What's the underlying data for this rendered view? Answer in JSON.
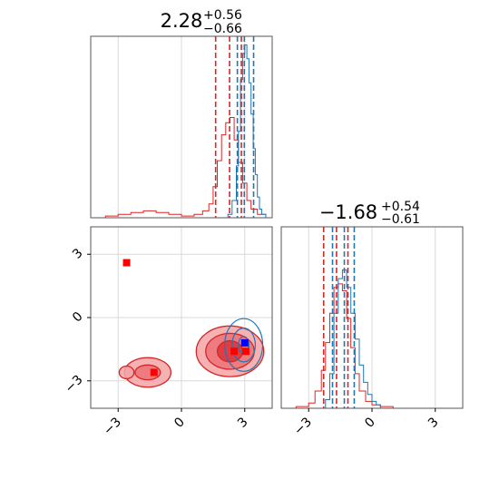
{
  "colors": {
    "red": "#d62728",
    "blue": "#1f77b4",
    "grid": "#d9d9d9",
    "axis": "#555555",
    "marker_red": "#ff0000",
    "marker_blue": "#0000ff"
  },
  "chart_data": {
    "type": "corner",
    "parameter_1": {
      "title_value": "2.28",
      "title_upper": "+0.56",
      "title_lower": "−0.66",
      "xlim": [
        -4.3,
        4.3
      ],
      "red_quantiles": [
        1.62,
        2.28,
        2.84
      ],
      "blue_quantiles": [
        2.65,
        2.98,
        3.42
      ],
      "hist_red": {
        "x": [
          -4.2,
          -3.6,
          -3.0,
          -2.4,
          -1.8,
          -1.2,
          -0.6,
          0.0,
          0.6,
          1.0,
          1.3,
          1.5,
          1.7,
          1.9,
          2.1,
          2.3,
          2.5,
          2.7,
          2.9,
          3.1,
          3.3,
          3.6,
          4.0
        ],
        "y": [
          0.0,
          0.01,
          0.02,
          0.03,
          0.04,
          0.03,
          0.02,
          0.01,
          0.02,
          0.04,
          0.08,
          0.18,
          0.33,
          0.48,
          0.55,
          0.58,
          0.45,
          0.32,
          0.2,
          0.1,
          0.05,
          0.02,
          0.0
        ]
      },
      "hist_blue": {
        "x": [
          2.0,
          2.2,
          2.4,
          2.6,
          2.7,
          2.8,
          2.9,
          3.0,
          3.1,
          3.2,
          3.3,
          3.4,
          3.5,
          3.6,
          3.7,
          3.8,
          4.0
        ],
        "y": [
          0.0,
          0.02,
          0.1,
          0.3,
          0.5,
          0.8,
          0.95,
          1.0,
          0.92,
          0.78,
          0.6,
          0.4,
          0.25,
          0.12,
          0.05,
          0.02,
          0.0
        ]
      }
    },
    "parameter_2": {
      "title_value": "−1.68",
      "title_upper": "+0.54",
      "title_lower": "−0.61",
      "xlim": [
        -4.3,
        4.3
      ],
      "red_quantiles": [
        -2.29,
        -1.68,
        -1.14
      ],
      "blue_quantiles": [
        -1.87,
        -1.31,
        -0.84
      ],
      "hist_red": {
        "x": [
          -4.2,
          -3.6,
          -3.0,
          -2.7,
          -2.4,
          -2.2,
          -2.0,
          -1.8,
          -1.6,
          -1.4,
          -1.2,
          -1.0,
          -0.8,
          -0.6,
          -0.3,
          0.0,
          0.4,
          1.0
        ],
        "y": [
          0.0,
          0.01,
          0.03,
          0.1,
          0.22,
          0.38,
          0.55,
          0.7,
          0.72,
          0.68,
          0.52,
          0.35,
          0.2,
          0.1,
          0.04,
          0.02,
          0.01,
          0.0
        ]
      },
      "hist_blue": {
        "x": [
          -2.4,
          -2.2,
          -2.0,
          -1.8,
          -1.6,
          -1.4,
          -1.2,
          -1.0,
          -0.8,
          -0.6,
          -0.4,
          -0.2,
          0.0,
          0.2,
          0.4
        ],
        "y": [
          0.0,
          0.05,
          0.2,
          0.55,
          0.75,
          0.8,
          0.7,
          0.55,
          0.4,
          0.25,
          0.15,
          0.08,
          0.04,
          0.02,
          0.0
        ]
      }
    },
    "joint": {
      "xlim": [
        -4.3,
        4.3
      ],
      "ylim": [
        -4.3,
        4.3
      ],
      "ticks": [
        -3,
        0,
        3
      ],
      "tick_labels": [
        "−3",
        "0",
        "3"
      ],
      "red_contours": [
        {
          "cx": 2.3,
          "cy": -1.6,
          "rx": 1.6,
          "ry": 1.2,
          "level": 0
        },
        {
          "cx": 2.3,
          "cy": -1.6,
          "rx": 1.15,
          "ry": 0.85,
          "level": 1
        },
        {
          "cx": 2.3,
          "cy": -1.6,
          "rx": 0.6,
          "ry": 0.5,
          "level": 2
        },
        {
          "cx": -1.6,
          "cy": -2.6,
          "rx": 1.1,
          "ry": 0.7,
          "level": 0
        },
        {
          "cx": -1.6,
          "cy": -2.6,
          "rx": 0.6,
          "ry": 0.35,
          "level": 1
        },
        {
          "cx": -2.6,
          "cy": -2.6,
          "rx": 0.35,
          "ry": 0.3,
          "level": 0
        }
      ],
      "blue_contours": [
        {
          "cx": 2.95,
          "cy": -1.3,
          "rx": 0.9,
          "ry": 1.25
        },
        {
          "cx": 2.95,
          "cy": -1.3,
          "rx": 0.55,
          "ry": 0.8
        },
        {
          "cx": 2.95,
          "cy": -1.3,
          "rx": 0.25,
          "ry": 0.4
        }
      ],
      "markers": [
        {
          "x": -2.6,
          "y": 2.6,
          "color": "red"
        },
        {
          "x": -1.3,
          "y": -2.6,
          "color": "red"
        },
        {
          "x": 2.5,
          "y": -1.6,
          "color": "red"
        },
        {
          "x": 3.05,
          "y": -1.6,
          "color": "red"
        },
        {
          "x": 3.0,
          "y": -1.2,
          "color": "blue"
        }
      ]
    }
  }
}
